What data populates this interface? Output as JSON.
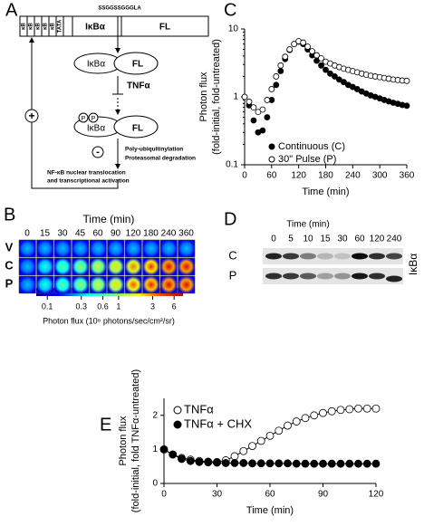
{
  "panel_labels": [
    "A",
    "B",
    "C",
    "D",
    "E"
  ],
  "diagram": {
    "linker": "SSGGSSGGGLA",
    "kb_sites": [
      "κB",
      "κB",
      "κB",
      "κB",
      "κB"
    ],
    "promoter": "TATA",
    "protein": "IκBα",
    "reporter": "FL",
    "stimulus": "TNFα",
    "phospho": [
      "P",
      "P"
    ],
    "degradation": [
      "Poly-ubiquitinylation",
      "Proteasomal degradation"
    ],
    "activation": [
      "NF-κB nuclear translocation",
      "and transcriptional activation"
    ],
    "positive": "+",
    "negative": "-"
  },
  "images": {
    "title": "Time (min)",
    "times": [
      "0",
      "15",
      "30",
      "45",
      "60",
      "90",
      "120",
      "180",
      "240",
      "360"
    ],
    "rows": [
      "V",
      "C",
      "P"
    ],
    "colorbar": {
      "label": "Photon flux (10⁶ photons/sec/cm²/sr)",
      "ticks": [
        0.1,
        0.3,
        0.6,
        1,
        3,
        6
      ],
      "lim": [
        0.07,
        8
      ],
      "log": true
    }
  },
  "blot": {
    "title": "Time (min)",
    "times": [
      "0",
      "5",
      "10",
      "15",
      "30",
      "60",
      "120",
      "240"
    ],
    "rows": [
      "C",
      "P"
    ],
    "protein": "IκBα"
  },
  "chart_data": [
    {
      "type": "scatter",
      "ylabel": [
        "Photon flux",
        "(fold-initial, fold-untreated)"
      ],
      "xlabel": "Time (min)",
      "ylog": true,
      "xlim": [
        0,
        360
      ],
      "ylim": [
        0.1,
        10
      ],
      "xticks": [
        0,
        60,
        120,
        180,
        240,
        300,
        360
      ],
      "yticks": [
        0.1,
        1,
        10
      ],
      "legend": "lower right",
      "x": [
        0,
        10,
        20,
        30,
        40,
        50,
        60,
        70,
        80,
        90,
        100,
        110,
        120,
        130,
        140,
        150,
        160,
        170,
        180,
        190,
        200,
        210,
        220,
        230,
        240,
        250,
        260,
        270,
        280,
        290,
        300,
        310,
        320,
        330,
        340,
        350,
        360
      ],
      "series": [
        {
          "name": "Continuous (C)",
          "color": "#000000",
          "marker": "filled",
          "values": [
            1.0,
            0.75,
            0.45,
            0.3,
            0.32,
            0.5,
            0.9,
            1.5,
            2.4,
            3.6,
            4.9,
            6.0,
            6.5,
            6.0,
            5.0,
            4.1,
            3.4,
            2.9,
            2.5,
            2.2,
            2.0,
            1.8,
            1.65,
            1.5,
            1.4,
            1.3,
            1.2,
            1.12,
            1.05,
            1.0,
            0.95,
            0.9,
            0.86,
            0.82,
            0.79,
            0.76,
            0.74
          ]
        },
        {
          "name": "30\" Pulse (P)",
          "color": "#000000",
          "marker": "open",
          "values": [
            1.0,
            0.85,
            0.7,
            0.6,
            0.65,
            0.9,
            1.3,
            2.0,
            2.9,
            3.9,
            5.0,
            6.0,
            6.6,
            6.3,
            5.5,
            4.7,
            4.1,
            3.7,
            3.3,
            3.1,
            2.9,
            2.75,
            2.6,
            2.5,
            2.4,
            2.3,
            2.2,
            2.12,
            2.05,
            2.0,
            1.95,
            1.9,
            1.85,
            1.8,
            1.77,
            1.74,
            1.72
          ]
        }
      ]
    },
    {
      "type": "line",
      "ylabel": [
        "Photon flux",
        "(fold-initial, fold TNFα-untreated)"
      ],
      "xlabel": "Time (min)",
      "ylog": false,
      "xlim": [
        0,
        120
      ],
      "ylim": [
        0,
        2.5
      ],
      "xticks": [
        0,
        30,
        60,
        90,
        120
      ],
      "yticks": [
        0,
        1,
        2
      ],
      "legend": "upper left",
      "x": [
        0,
        5,
        10,
        15,
        20,
        25,
        30,
        35,
        40,
        45,
        50,
        55,
        60,
        65,
        70,
        75,
        80,
        85,
        90,
        95,
        100,
        105,
        110,
        115,
        120
      ],
      "series": [
        {
          "name": "TNFα",
          "color": "#000000",
          "marker": "open",
          "values": [
            1.0,
            0.85,
            0.75,
            0.7,
            0.66,
            0.64,
            0.63,
            0.68,
            0.8,
            0.95,
            1.1,
            1.25,
            1.4,
            1.55,
            1.7,
            1.82,
            1.92,
            2.0,
            2.07,
            2.12,
            2.16,
            2.18,
            2.2,
            2.2,
            2.2
          ]
        },
        {
          "name": "TNFα + CHX",
          "color": "#000000",
          "marker": "filled",
          "values": [
            1.0,
            0.85,
            0.72,
            0.66,
            0.63,
            0.62,
            0.61,
            0.6,
            0.6,
            0.6,
            0.59,
            0.59,
            0.59,
            0.59,
            0.59,
            0.58,
            0.58,
            0.58,
            0.58,
            0.58,
            0.58,
            0.58,
            0.58,
            0.58,
            0.58
          ]
        }
      ]
    }
  ]
}
